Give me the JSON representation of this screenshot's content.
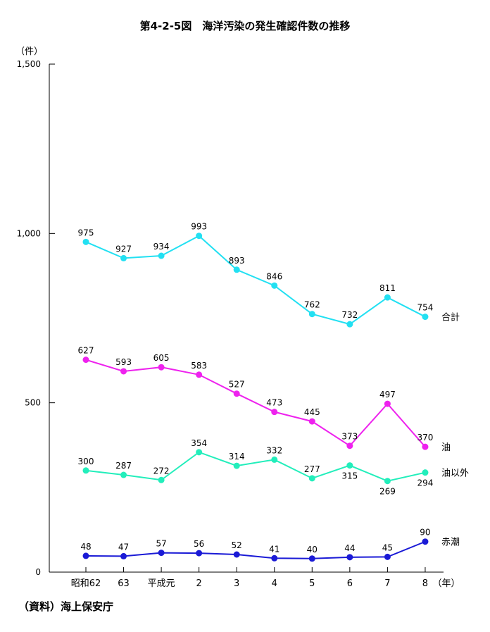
{
  "chart_data": {
    "type": "line",
    "title": "第4-2-5図　海洋汚染の発生確認件数の推移",
    "ylabel": "（件）",
    "xlabel": "（年）",
    "source": "（資料）海上保安庁",
    "ylim": [
      0,
      1500
    ],
    "yticks": [
      {
        "value": 0,
        "label": "0"
      },
      {
        "value": 500,
        "label": "500"
      },
      {
        "value": 1000,
        "label": "1,000"
      },
      {
        "value": 1500,
        "label": "1,500"
      }
    ],
    "categories": [
      "昭和62",
      "63",
      "平成元",
      "2",
      "3",
      "4",
      "5",
      "6",
      "7",
      "8"
    ],
    "grid": false,
    "legend": "inline-right",
    "series": [
      {
        "name": "合計",
        "color": "#22e0f2",
        "values": [
          975,
          927,
          934,
          993,
          893,
          846,
          762,
          732,
          811,
          754
        ],
        "labelPos": [
          "above",
          "above",
          "above",
          "above",
          "above",
          "above",
          "above",
          "above",
          "above",
          "above"
        ]
      },
      {
        "name": "油",
        "color": "#ee22ee",
        "values": [
          627,
          593,
          605,
          583,
          527,
          473,
          445,
          373,
          497,
          370
        ],
        "labelPos": [
          "above",
          "above",
          "above",
          "above",
          "above",
          "above",
          "above",
          "above",
          "above",
          "above"
        ]
      },
      {
        "name": "油以外",
        "color": "#22eebb",
        "values": [
          300,
          287,
          272,
          354,
          314,
          332,
          277,
          315,
          269,
          294
        ],
        "labelPos": [
          "above",
          "above",
          "above",
          "above",
          "above",
          "above",
          "above",
          "below",
          "below",
          "below"
        ]
      },
      {
        "name": "赤潮",
        "color": "#1a1ad6",
        "values": [
          48,
          47,
          57,
          56,
          52,
          41,
          40,
          44,
          45,
          90
        ],
        "labelPos": [
          "above",
          "above",
          "above",
          "above",
          "above",
          "above",
          "above",
          "above",
          "above",
          "above"
        ]
      }
    ]
  }
}
